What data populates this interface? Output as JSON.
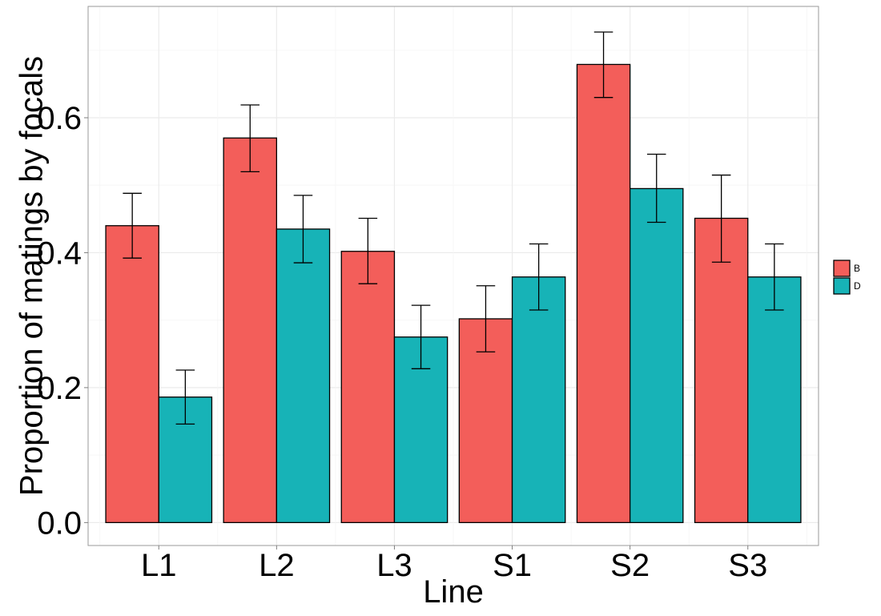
{
  "chart_data": {
    "type": "bar",
    "categories": [
      "L1",
      "L2",
      "L3",
      "S1",
      "S2",
      "S3"
    ],
    "series": [
      {
        "name": "B",
        "color": "#F35E5A",
        "values": [
          0.44,
          0.57,
          0.402,
          0.302,
          0.679,
          0.451
        ],
        "error_lower": [
          0.392,
          0.52,
          0.354,
          0.253,
          0.63,
          0.386
        ],
        "error_upper": [
          0.488,
          0.619,
          0.451,
          0.351,
          0.727,
          0.515
        ]
      },
      {
        "name": "D",
        "color": "#17B3B7",
        "values": [
          0.186,
          0.435,
          0.275,
          0.364,
          0.495,
          0.364
        ],
        "error_lower": [
          0.146,
          0.385,
          0.228,
          0.315,
          0.445,
          0.315
        ],
        "error_upper": [
          0.226,
          0.485,
          0.322,
          0.413,
          0.546,
          0.413
        ]
      }
    ],
    "xlabel": "Line",
    "ylabel": "Proportion of matings by focals",
    "ylim": [
      -0.034,
      0.765
    ],
    "yticks": [
      0.0,
      0.2,
      0.4,
      0.6
    ],
    "ytick_labels": [
      "0.0",
      "0.2",
      "0.4",
      "0.6"
    ],
    "legend_position": "right",
    "grid": true
  }
}
